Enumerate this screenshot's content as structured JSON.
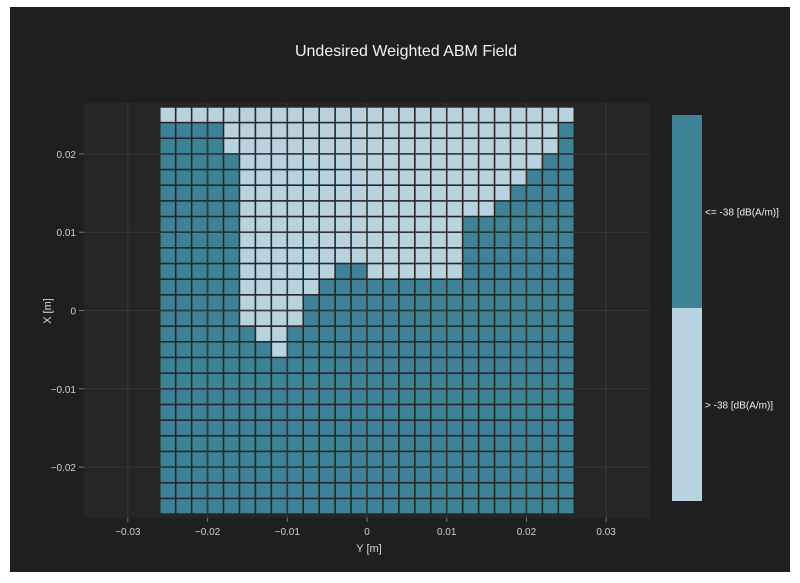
{
  "chart_data": {
    "type": "heatmap",
    "title": "Undesired Weighted ABM Field",
    "xlabel": "Y [m]",
    "ylabel": "X [m]",
    "x_ticks": [
      "−0.03",
      "−0.02",
      "−0.01",
      "0",
      "0.01",
      "0.02",
      "0.03"
    ],
    "y_ticks": [
      "0.02",
      "0.01",
      "0",
      "−0.01",
      "−0.02"
    ],
    "xlim": [
      -0.0355,
      0.0355
    ],
    "ylim": [
      -0.0265,
      0.0265
    ],
    "grid": true,
    "cell_size_m": 0.002,
    "grid_x_range": [
      -0.026,
      0.026
    ],
    "grid_x_cells": 26,
    "grid_rows": 26,
    "categories": [
      "<= -38 [dB(A/m)]",
      "> -38 [dB(A/m)]"
    ],
    "colors": {
      "low": "#3d8297",
      "high": "#b8d2df"
    },
    "high_region_by_row_from_top": [
      [
        0,
        25
      ],
      [
        4,
        24
      ],
      [
        4,
        24
      ],
      [
        5,
        23
      ],
      [
        5,
        22
      ],
      [
        5,
        21
      ],
      [
        5,
        20
      ],
      [
        5,
        18
      ],
      [
        5,
        18
      ],
      [
        5,
        18
      ],
      [
        5,
        10,
        13,
        18
      ],
      [
        5,
        9
      ],
      [
        5,
        8
      ],
      [
        5,
        8
      ],
      [
        6,
        7
      ],
      [
        7,
        7
      ]
    ],
    "legend": [
      {
        "label": "<= -38 [dB(A/m)]",
        "color": "#3d8297"
      },
      {
        "label": "> -38 [dB(A/m)]",
        "color": "#b8d2df"
      }
    ]
  }
}
